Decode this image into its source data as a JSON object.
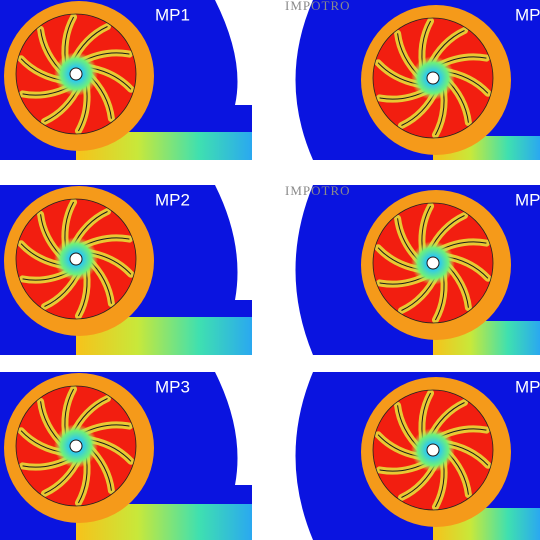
{
  "panels": [
    {
      "label": "MP1"
    },
    {
      "label": "MP",
      "watermark": "IMPOTRO"
    },
    {
      "label": "MP2"
    },
    {
      "label": "MP",
      "watermark": "IMPOTRO"
    },
    {
      "label": "MP3"
    },
    {
      "label": "MP"
    }
  ]
}
